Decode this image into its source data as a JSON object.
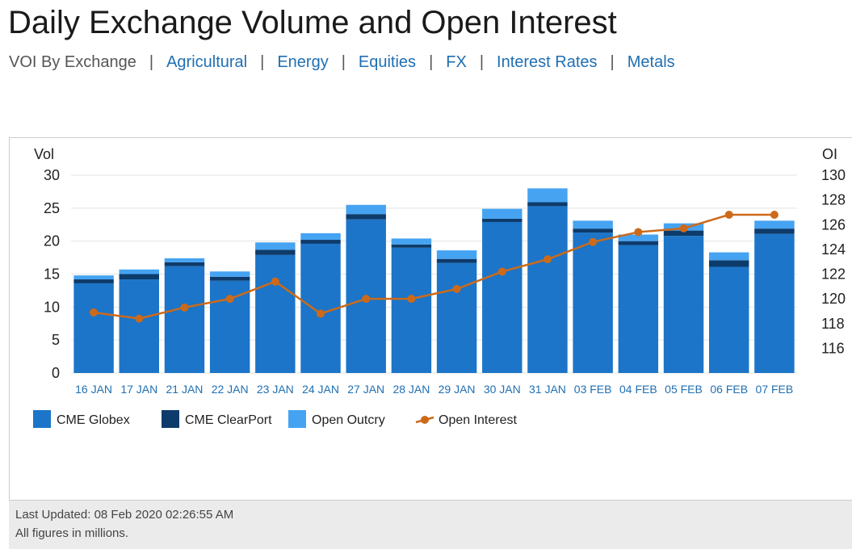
{
  "page": {
    "title": "Daily Exchange Volume and Open Interest",
    "nav_current": "VOI By Exchange",
    "nav_links": [
      "Agricultural",
      "Energy",
      "Equities",
      "FX",
      "Interest Rates",
      "Metals"
    ]
  },
  "footer": {
    "last_updated": "Last Updated: 08 Feb 2020 02:26:55 AM",
    "note": "All figures in millions."
  },
  "colors": {
    "globex": "#1c75c8",
    "clearport": "#0d3b6b",
    "outcry": "#45a3f2",
    "open_interest": "#cc6a1a",
    "grid": "#e3e3e3"
  },
  "chart_data": {
    "type": "bar",
    "stacked": true,
    "title": "",
    "ylabel": "Vol",
    "y2label": "OI",
    "ylim": [
      0,
      30
    ],
    "y2lim": [
      114,
      130
    ],
    "yticks": [
      0,
      5,
      10,
      15,
      20,
      25,
      30
    ],
    "y2ticks": [
      116,
      118,
      120,
      122,
      124,
      126,
      128,
      130
    ],
    "grid": true,
    "legend_position": "bottom-left",
    "categories": [
      "16 JAN",
      "17 JAN",
      "21 JAN",
      "22 JAN",
      "23 JAN",
      "24 JAN",
      "27 JAN",
      "28 JAN",
      "29 JAN",
      "30 JAN",
      "31 JAN",
      "03 FEB",
      "04 FEB",
      "05 FEB",
      "06 FEB",
      "07 FEB"
    ],
    "series": [
      {
        "name": "CME Globex",
        "kind": "bar",
        "values": [
          13.6,
          14.2,
          16.2,
          14.0,
          17.9,
          19.6,
          23.3,
          19.0,
          16.7,
          22.9,
          25.3,
          21.3,
          19.4,
          20.8,
          16.1,
          21.1
        ]
      },
      {
        "name": "CME ClearPort",
        "kind": "bar",
        "values": [
          0.6,
          0.8,
          0.6,
          0.6,
          0.8,
          0.6,
          0.8,
          0.5,
          0.6,
          0.5,
          0.6,
          0.6,
          0.6,
          0.8,
          1.0,
          0.8
        ]
      },
      {
        "name": "Open Outcry",
        "kind": "bar",
        "values": [
          0.6,
          0.7,
          0.6,
          0.8,
          1.1,
          1.0,
          1.4,
          0.9,
          1.3,
          1.5,
          2.1,
          1.2,
          1.0,
          1.1,
          1.2,
          1.2
        ]
      },
      {
        "name": "Open Interest",
        "kind": "line",
        "axis": "right",
        "values": [
          118.9,
          118.4,
          119.3,
          120.0,
          121.4,
          118.8,
          120.0,
          120.0,
          120.8,
          122.2,
          123.2,
          124.6,
          125.4,
          125.7,
          126.8,
          126.8
        ]
      }
    ]
  }
}
